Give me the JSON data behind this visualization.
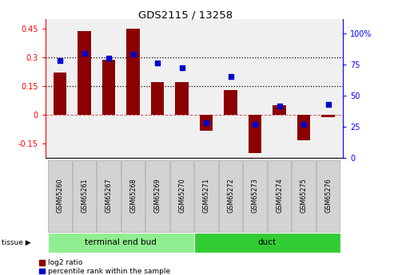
{
  "title": "GDS2115 / 13258",
  "samples": [
    "GSM65260",
    "GSM65261",
    "GSM65267",
    "GSM65268",
    "GSM65269",
    "GSM65270",
    "GSM65271",
    "GSM65272",
    "GSM65273",
    "GSM65274",
    "GSM65275",
    "GSM65276"
  ],
  "log2_ratio": [
    0.22,
    0.44,
    0.29,
    0.45,
    0.17,
    0.17,
    -0.08,
    0.13,
    -0.2,
    0.05,
    -0.13,
    -0.01
  ],
  "percentile_rank": [
    78,
    84,
    80,
    83,
    76,
    72,
    28,
    65,
    27,
    42,
    27,
    43
  ],
  "tissue_groups": [
    {
      "label": "terminal end bud",
      "start": 0,
      "end": 6,
      "color": "#90EE90"
    },
    {
      "label": "duct",
      "start": 6,
      "end": 12,
      "color": "#32CD32"
    }
  ],
  "bar_color": "#8B0000",
  "dot_color": "#0000CD",
  "ylim_left": [
    -0.225,
    0.5
  ],
  "ylim_right": [
    0,
    111.11
  ],
  "yticks_left": [
    -0.15,
    0.0,
    0.15,
    0.3,
    0.45
  ],
  "yticks_right": [
    0,
    25,
    50,
    75,
    100
  ],
  "hlines": [
    0.15,
    0.3
  ],
  "zero_line": 0.0,
  "bar_width": 0.55,
  "chart_bg": "#f0f0f0",
  "sample_box_color": "#d3d3d3",
  "sample_box_edge": "#aaaaaa"
}
